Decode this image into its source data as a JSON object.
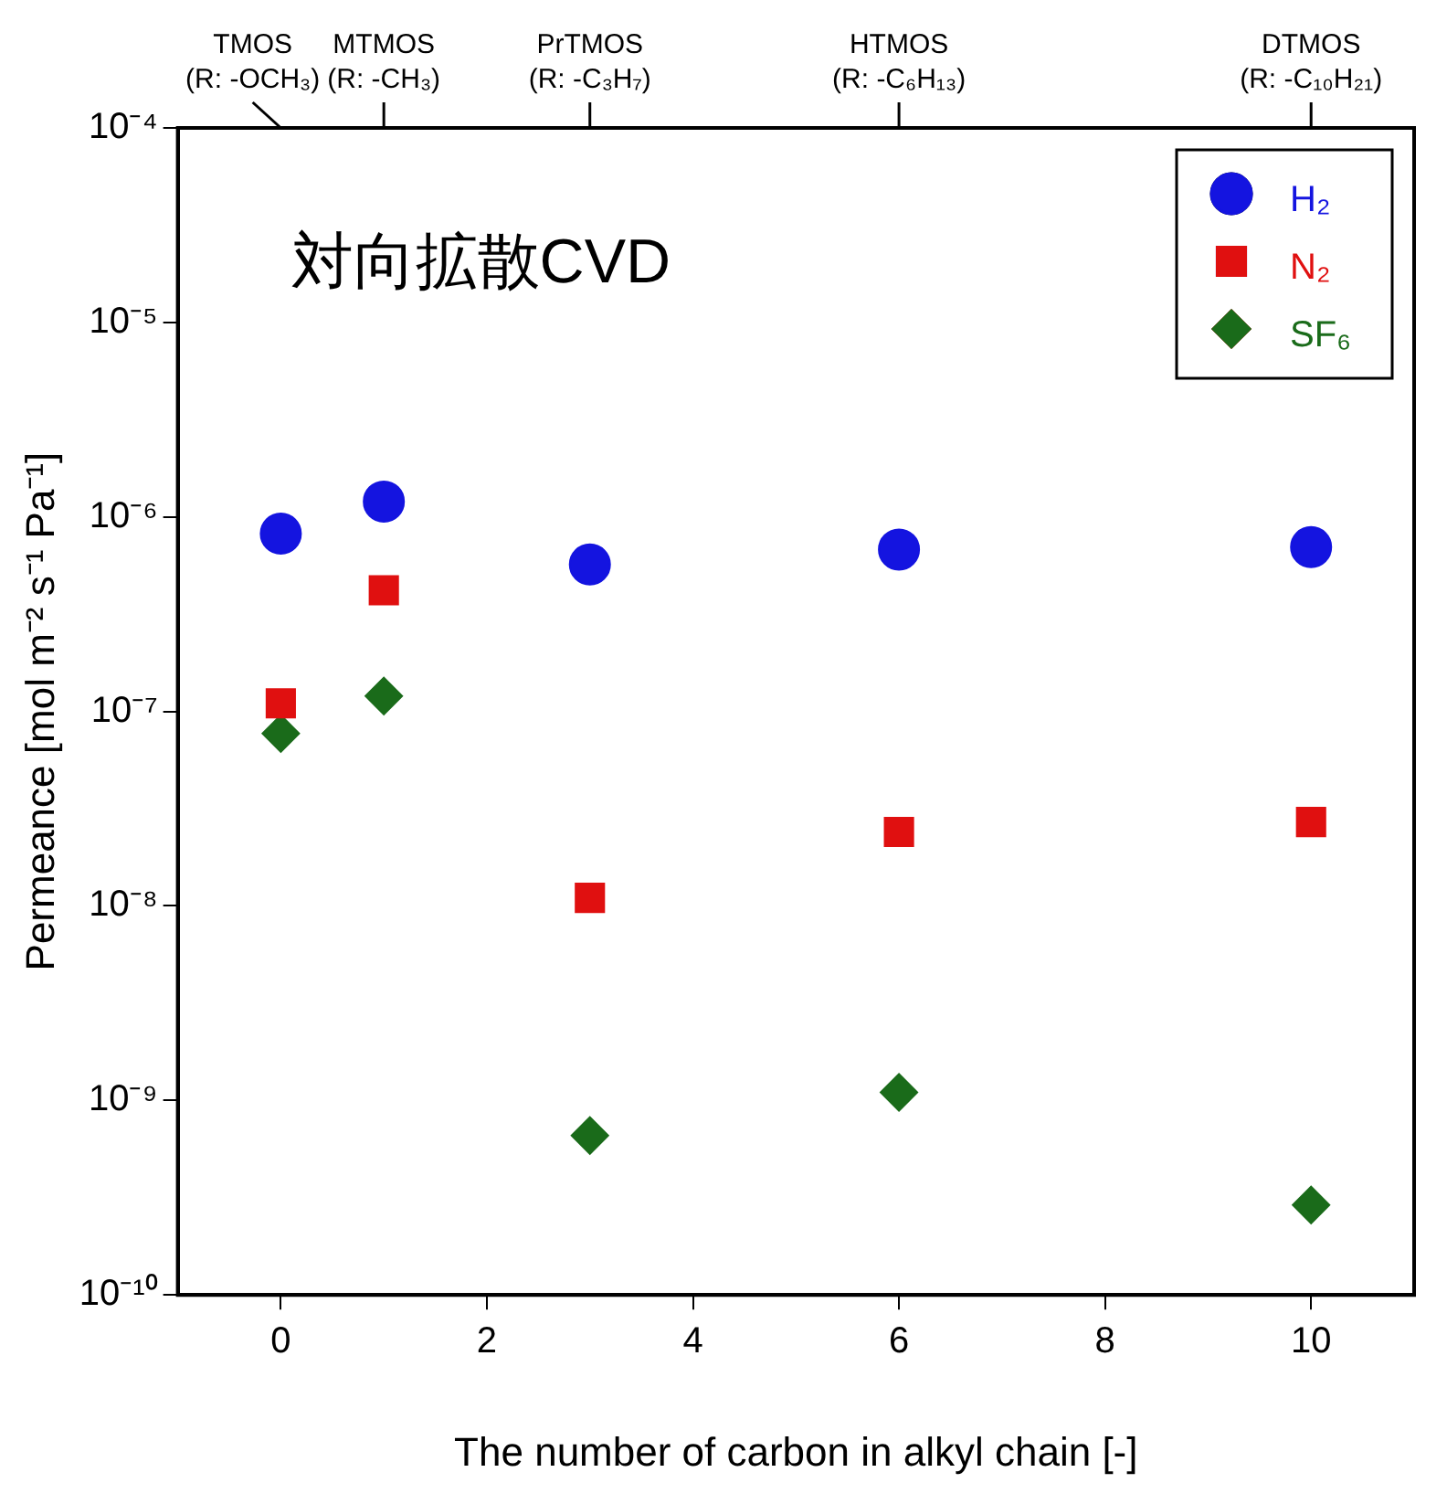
{
  "chart_data": {
    "type": "scatter",
    "xlabel": "The number of carbon in alkyl chain [-]",
    "ylabel": "Permeance [mol m⁻² s⁻¹ Pa⁻¹]",
    "annotations": [
      "対向拡散CVD",
      {
        "text": "TMOS\n(R: -OCH₃)",
        "x": 0
      },
      {
        "text": "MTMOS\n(R: -CH₃)",
        "x": 1
      },
      {
        "text": "PrTMOS\n(R: -C₃H₇)",
        "x": 3
      },
      {
        "text": "HTMOS\n(R: -C₆H₁₃)",
        "x": 6
      },
      {
        "text": "DTMOS\n(R: -C₁₀H₂₁)",
        "x": 10
      }
    ],
    "x": [
      0,
      1,
      3,
      6,
      10
    ],
    "series": [
      {
        "name": "H₂",
        "color": "#1414e0",
        "marker": "circle",
        "values": [
          8.2e-07,
          1.2e-06,
          5.7e-07,
          6.8e-07,
          7e-07
        ]
      },
      {
        "name": "N₂",
        "color": "#e01010",
        "marker": "square",
        "values": [
          1.1e-07,
          4.2e-07,
          1.1e-08,
          2.4e-08,
          2.7e-08
        ]
      },
      {
        "name": "SF₆",
        "color": "#1a6b1a",
        "marker": "diamond",
        "values": [
          7.7e-08,
          1.2e-07,
          6.6e-10,
          1.1e-09,
          2.9e-10
        ]
      }
    ],
    "xlim": [
      -1,
      11
    ],
    "xticks": [
      0,
      2,
      4,
      6,
      8,
      10
    ],
    "ylim": [
      1e-10,
      0.0001
    ],
    "yticks": [
      {
        "value": 1e-10,
        "label": "10⁻¹⁰"
      },
      {
        "value": 1e-09,
        "label": "10⁻⁹"
      },
      {
        "value": 1e-08,
        "label": "10⁻⁸"
      },
      {
        "value": 1e-07,
        "label": "10⁻⁷"
      },
      {
        "value": 1e-06,
        "label": "10⁻⁶"
      },
      {
        "value": 1e-05,
        "label": "10⁻⁵"
      },
      {
        "value": 0.0001,
        "label": "10⁻⁴"
      }
    ],
    "log": "y",
    "grid": false,
    "legend": "top right"
  }
}
